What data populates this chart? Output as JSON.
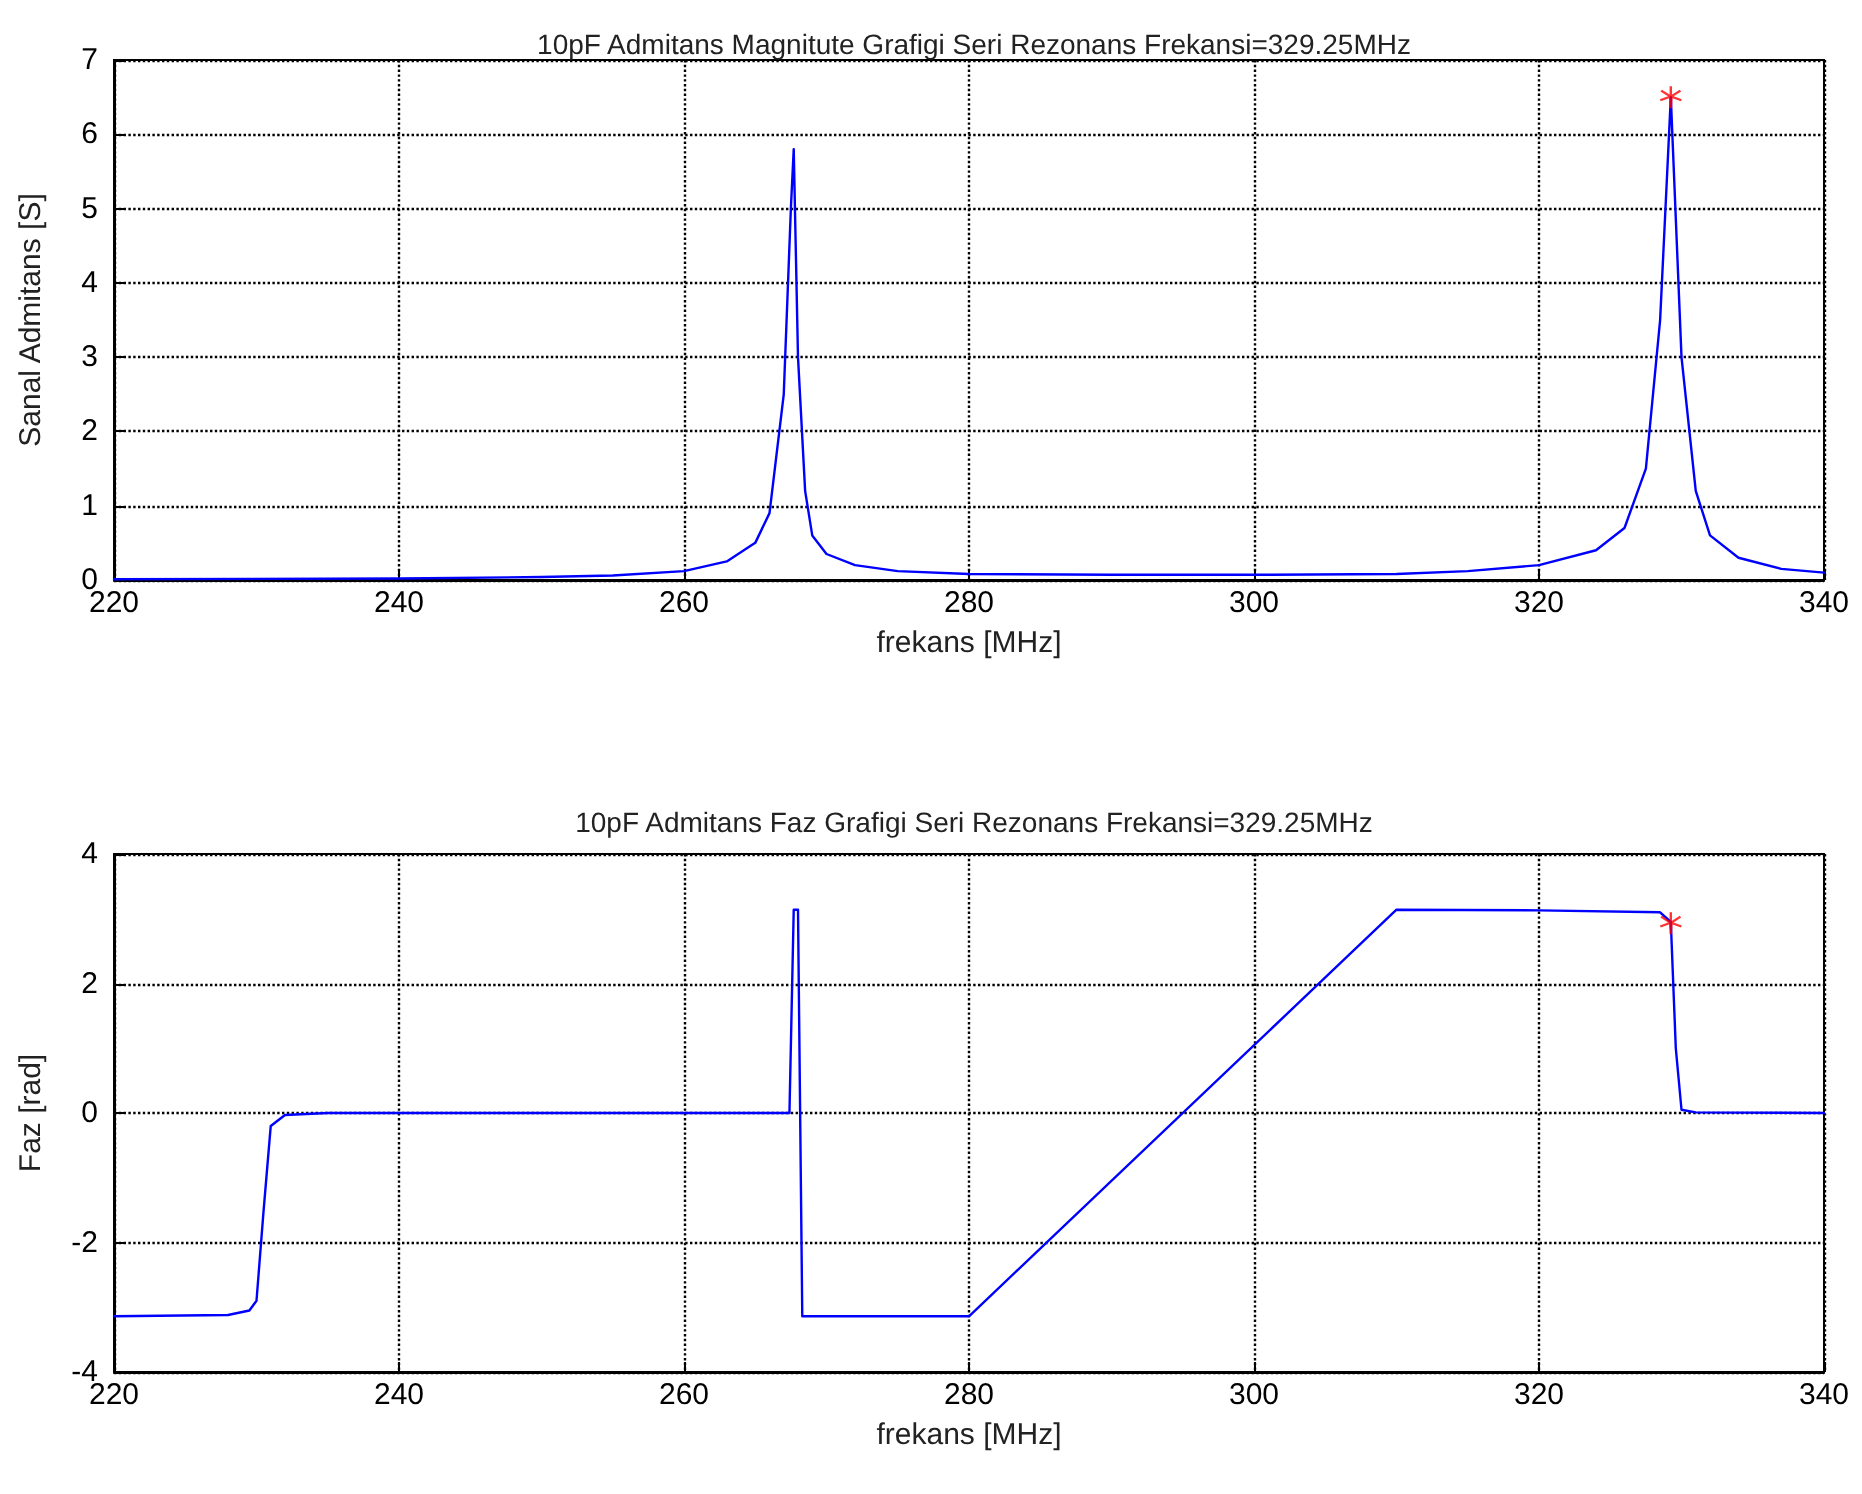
{
  "chart_data": [
    {
      "type": "line",
      "title": "10pF Admitans Magnitute Grafigi Seri Rezonans Frekansi=329.25MHz",
      "xlabel": "frekans [MHz]",
      "ylabel": "Sanal Admitans [S]",
      "xlim": [
        220,
        340
      ],
      "xticks": [
        220,
        240,
        260,
        280,
        300,
        320,
        340
      ],
      "ylim": [
        0,
        7
      ],
      "yticks": [
        0,
        1,
        2,
        3,
        4,
        5,
        6,
        7
      ],
      "grid": true,
      "line_style": "solid",
      "series": [
        {
          "marker": "none",
          "color": "#0000ff",
          "x": [
            220,
            240,
            250,
            255,
            260,
            263,
            265,
            266,
            267,
            267.5,
            267.7,
            268,
            268.5,
            269,
            270,
            272,
            275,
            280,
            290,
            300,
            310,
            315,
            320,
            324,
            326,
            327.5,
            328.5,
            329.25,
            330,
            331,
            332,
            334,
            337,
            340
          ],
          "values": [
            0.01,
            0.02,
            0.04,
            0.06,
            0.12,
            0.25,
            0.5,
            0.9,
            2.5,
            5.0,
            5.8,
            3.0,
            1.2,
            0.6,
            0.35,
            0.2,
            0.12,
            0.08,
            0.07,
            0.07,
            0.08,
            0.12,
            0.2,
            0.4,
            0.7,
            1.5,
            3.5,
            6.5,
            3.0,
            1.2,
            0.6,
            0.3,
            0.15,
            0.1
          ]
        },
        {
          "type": "scatter",
          "marker": "star",
          "color": "#ff0000",
          "x": [
            329.25
          ],
          "values": [
            6.5
          ]
        }
      ]
    },
    {
      "type": "line",
      "title": "10pF Admitans Faz Grafigi Seri Rezonans Frekansi=329.25MHz",
      "xlabel": "frekans [MHz]",
      "ylabel": "Faz [rad]",
      "xlim": [
        220,
        340
      ],
      "xticks": [
        220,
        240,
        260,
        280,
        300,
        320,
        340
      ],
      "ylim": [
        -4,
        4
      ],
      "yticks": [
        -4,
        -2,
        0,
        2,
        4
      ],
      "grid": true,
      "line_style": "solid",
      "series": [
        {
          "marker": "none",
          "color": "#0000ff",
          "x": [
            220,
            228,
            229.5,
            230,
            230.5,
            231,
            232,
            235,
            240,
            260,
            267.4,
            267.7,
            268,
            268.3,
            280,
            310,
            320,
            328.5,
            329.25,
            329.6,
            330,
            331,
            340
          ],
          "values": [
            -3.14,
            -3.12,
            -3.05,
            -2.9,
            -1.5,
            -0.2,
            -0.03,
            0,
            0,
            0,
            0,
            3.14,
            3.14,
            -3.14,
            -3.14,
            3.14,
            3.13,
            3.1,
            2.95,
            1.0,
            0.05,
            0.01,
            0
          ]
        },
        {
          "type": "scatter",
          "marker": "star",
          "color": "#ff0000",
          "x": [
            329.25
          ],
          "values": [
            2.93
          ]
        }
      ]
    }
  ]
}
